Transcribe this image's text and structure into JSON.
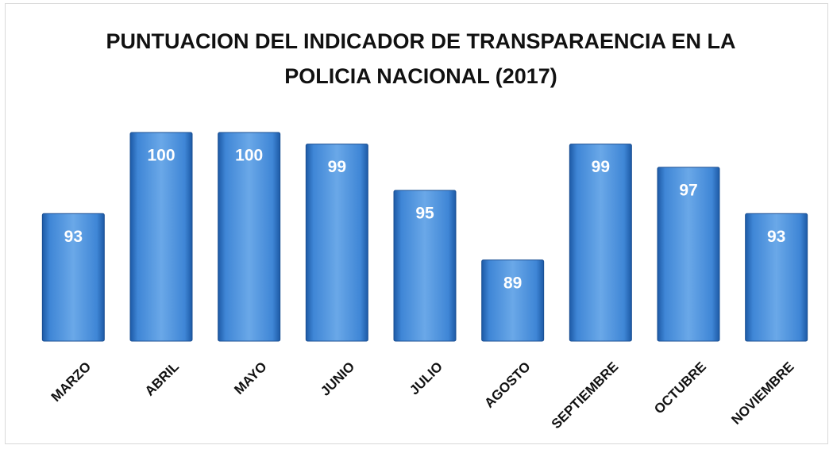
{
  "chart_data": {
    "type": "bar",
    "title": "PUNTUACION DEL INDICADOR DE TRANSPARAENCIA EN LA POLICIA NACIONAL (2017)",
    "categories": [
      "MARZO",
      "ABRIL",
      "MAYO",
      "JUNIO",
      "JULIO",
      "AGOSTO",
      "SEPTIEMBRE",
      "OCTUBRE",
      "NOVIEMBRE"
    ],
    "values": [
      93,
      100,
      100,
      99,
      95,
      89,
      99,
      97,
      93
    ],
    "color": "#3f86d6",
    "ylim": [
      82,
      100
    ]
  }
}
